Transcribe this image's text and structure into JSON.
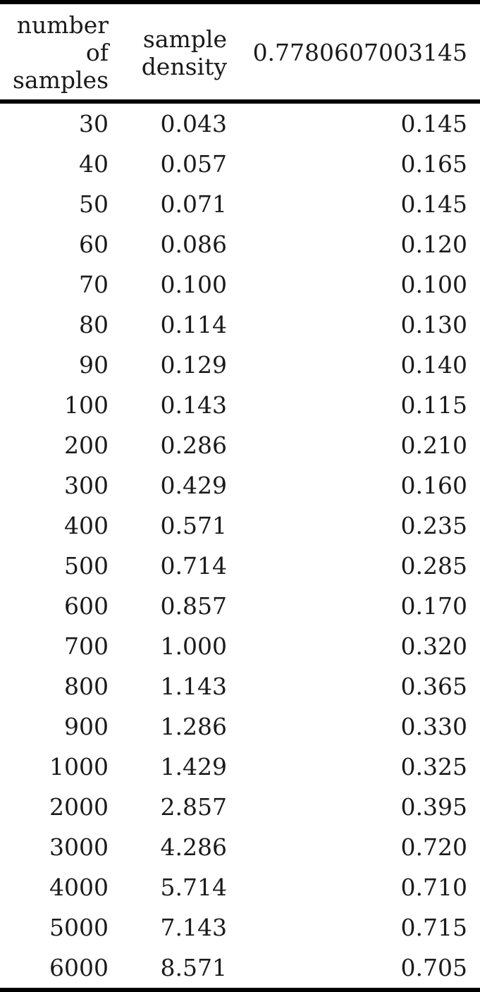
{
  "table": {
    "headers": [
      [
        "number",
        "of",
        "samples"
      ],
      [
        "sample",
        "density"
      ],
      [
        "0.7780607003145"
      ]
    ],
    "rows": [
      [
        "30",
        "0.043",
        "0.145"
      ],
      [
        "40",
        "0.057",
        "0.165"
      ],
      [
        "50",
        "0.071",
        "0.145"
      ],
      [
        "60",
        "0.086",
        "0.120"
      ],
      [
        "70",
        "0.100",
        "0.100"
      ],
      [
        "80",
        "0.114",
        "0.130"
      ],
      [
        "90",
        "0.129",
        "0.140"
      ],
      [
        "100",
        "0.143",
        "0.115"
      ],
      [
        "200",
        "0.286",
        "0.210"
      ],
      [
        "300",
        "0.429",
        "0.160"
      ],
      [
        "400",
        "0.571",
        "0.235"
      ],
      [
        "500",
        "0.714",
        "0.285"
      ],
      [
        "600",
        "0.857",
        "0.170"
      ],
      [
        "700",
        "1.000",
        "0.320"
      ],
      [
        "800",
        "1.143",
        "0.365"
      ],
      [
        "900",
        "1.286",
        "0.330"
      ],
      [
        "1000",
        "1.429",
        "0.325"
      ],
      [
        "2000",
        "2.857",
        "0.395"
      ],
      [
        "3000",
        "4.286",
        "0.720"
      ],
      [
        "4000",
        "5.714",
        "0.710"
      ],
      [
        "5000",
        "7.143",
        "0.715"
      ],
      [
        "6000",
        "8.571",
        "0.705"
      ]
    ]
  }
}
